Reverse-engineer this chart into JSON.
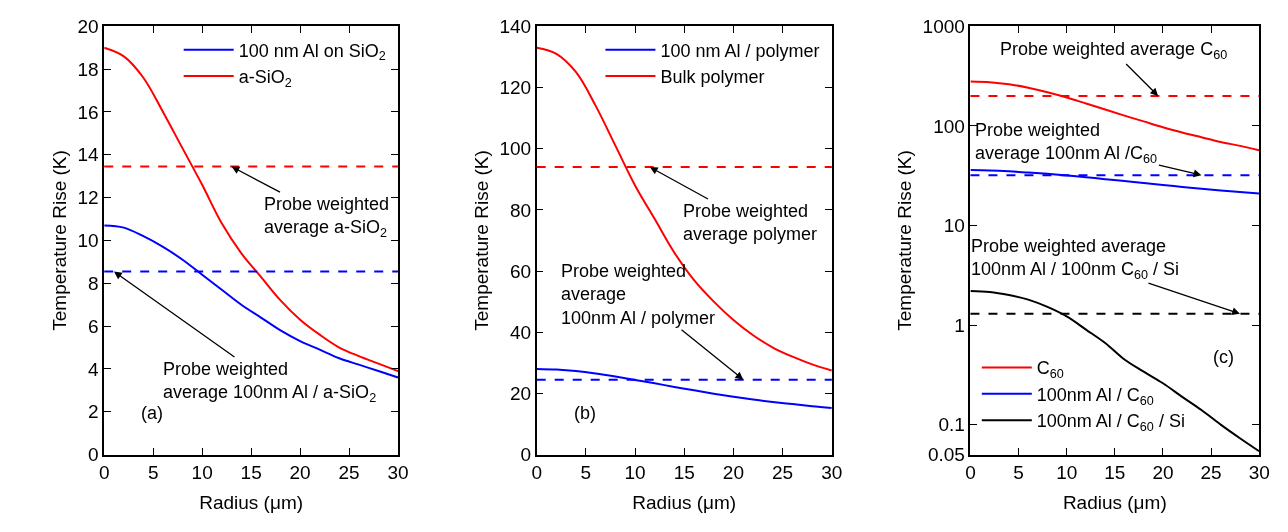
{
  "chart_data": [
    {
      "type": "line",
      "xlabel": "Radius (μm)",
      "ylabel": "Temperature Rise (K)",
      "xlim": [
        0,
        30
      ],
      "xticks": [
        0,
        5,
        10,
        15,
        20,
        25,
        30
      ],
      "ylim": [
        0,
        20
      ],
      "yticks": [
        0,
        2,
        4,
        6,
        8,
        10,
        12,
        14,
        16,
        18,
        20
      ],
      "legend": "top right",
      "line_style": "solid",
      "marker": "none",
      "x": [
        0,
        2,
        4,
        6,
        8,
        10,
        12,
        14,
        16,
        18,
        20,
        22,
        24,
        26,
        28,
        30
      ],
      "series": [
        {
          "name": "100 nm Al on SiO$_{2}$",
          "color": "#0000ff",
          "values": [
            10.7,
            10.6,
            10.2,
            9.7,
            9.1,
            8.4,
            7.7,
            7.0,
            6.4,
            5.8,
            5.3,
            4.9,
            4.5,
            4.2,
            3.9,
            3.6
          ]
        },
        {
          "name": "a-SiO$_{2}$",
          "color": "#ff0000",
          "values": [
            19.0,
            18.6,
            17.6,
            16.0,
            14.3,
            12.6,
            10.8,
            9.4,
            8.3,
            7.2,
            6.3,
            5.6,
            5.0,
            4.6,
            4.25,
            3.9
          ]
        }
      ],
      "ref_lines": [
        {
          "axis": "y",
          "value": 13.45,
          "color": "#ff0000",
          "line_style": "dashed"
        },
        {
          "axis": "y",
          "value": 8.55,
          "color": "#0000ff",
          "line_style": "dashed"
        }
      ],
      "annotations": [
        {
          "text": "Probe weighted\naverage a-SiO$_{2}$",
          "x": 13,
          "y": 13.45
        },
        {
          "text": "Probe weighted\naverage 100nm Al / a-SiO$_{2}$",
          "x": 1,
          "y": 8.55
        },
        "(a)"
      ]
    },
    {
      "type": "line",
      "xlabel": "Radius (μm)",
      "ylabel": "Temperature Rise (K)",
      "xlim": [
        0,
        30
      ],
      "xticks": [
        0,
        5,
        10,
        15,
        20,
        25,
        30
      ],
      "ylim": [
        0,
        140
      ],
      "yticks": [
        0,
        20,
        40,
        60,
        80,
        100,
        120,
        140
      ],
      "legend": "top right",
      "line_style": "solid",
      "marker": "none",
      "x": [
        0,
        2,
        4,
        6,
        8,
        10,
        12,
        14,
        16,
        18,
        20,
        22,
        24,
        26,
        28,
        30
      ],
      "series": [
        {
          "name": "100 nm Al / polymer",
          "color": "#0000ff",
          "values": [
            28,
            27.8,
            27.3,
            26.5,
            25.5,
            24.4,
            23.3,
            22.1,
            21,
            19.9,
            18.9,
            18,
            17.2,
            16.5,
            15.8,
            15.2
          ]
        },
        {
          "name": "Bulk polymer",
          "color": "#ff0000",
          "values": [
            133,
            131,
            125,
            114,
            101,
            88,
            77,
            66,
            57,
            50,
            44,
            39,
            35,
            32,
            29.5,
            27.5
          ]
        }
      ],
      "ref_lines": [
        {
          "axis": "y",
          "value": 94,
          "color": "#ff0000",
          "line_style": "dashed"
        },
        {
          "axis": "y",
          "value": 24.5,
          "color": "#0000ff",
          "line_style": "dashed"
        }
      ],
      "annotations": [
        {
          "text": "Probe weighted\naverage polymer",
          "x": 11.5,
          "y": 94
        },
        {
          "text": "Probe weighted\naverage\n100nm Al / polymer",
          "x": 21,
          "y": 24.5
        },
        "(b)"
      ]
    },
    {
      "type": "line",
      "xlabel": "Radius (μm)",
      "ylabel": "Temperature Rise (K)",
      "xlim": [
        0,
        30
      ],
      "xticks": [
        0,
        5,
        10,
        15,
        20,
        25,
        30
      ],
      "log": "y",
      "ylim": [
        0.05,
        1000
      ],
      "yticks": [
        0.05,
        0.1,
        1,
        10,
        100,
        1000
      ],
      "legend": "bottom left",
      "line_style": "solid",
      "marker": "none",
      "x": [
        0,
        2,
        4,
        6,
        8,
        10,
        12,
        14,
        16,
        18,
        20,
        22,
        24,
        26,
        28,
        30
      ],
      "series": [
        {
          "name": "C$_{60}$",
          "color": "#ff0000",
          "values": [
            280,
            275,
            262,
            242,
            218,
            193,
            168,
            146,
            127,
            111,
            97,
            86,
            77,
            69,
            63,
            57
          ]
        },
        {
          "name": "100nm Al / C$_{60}$",
          "color": "#0000ff",
          "values": [
            36,
            35.7,
            35,
            34,
            33,
            31.8,
            30.5,
            29.2,
            27.9,
            26.7,
            25.5,
            24.4,
            23.4,
            22.5,
            21.7,
            21
          ]
        },
        {
          "name": "100nm Al / C$_{60}$ / Si",
          "color": "#000000",
          "values": [
            2.2,
            2.15,
            2.0,
            1.8,
            1.52,
            1.22,
            0.9,
            0.66,
            0.45,
            0.34,
            0.26,
            0.19,
            0.14,
            0.1,
            0.073,
            0.054
          ]
        }
      ],
      "ref_lines": [
        {
          "axis": "y",
          "value": 200,
          "color": "#ff0000",
          "line_style": "dashed"
        },
        {
          "axis": "y",
          "value": 32,
          "color": "#0000ff",
          "line_style": "dashed"
        },
        {
          "axis": "y",
          "value": 1.3,
          "color": "#000000",
          "line_style": "dashed"
        }
      ],
      "annotations": [
        {
          "text": "Probe weighted average C$_{60}$",
          "x": 19.5,
          "y": 200
        },
        {
          "text": "Probe weighted\naverage 100nm Al /C$_{60}$",
          "x": 24,
          "y": 32
        },
        {
          "text": "Probe weighted average\n100nm Al / 100nm C$_{60}$ / Si",
          "x": 28,
          "y": 1.3
        },
        "(c)"
      ]
    }
  ]
}
